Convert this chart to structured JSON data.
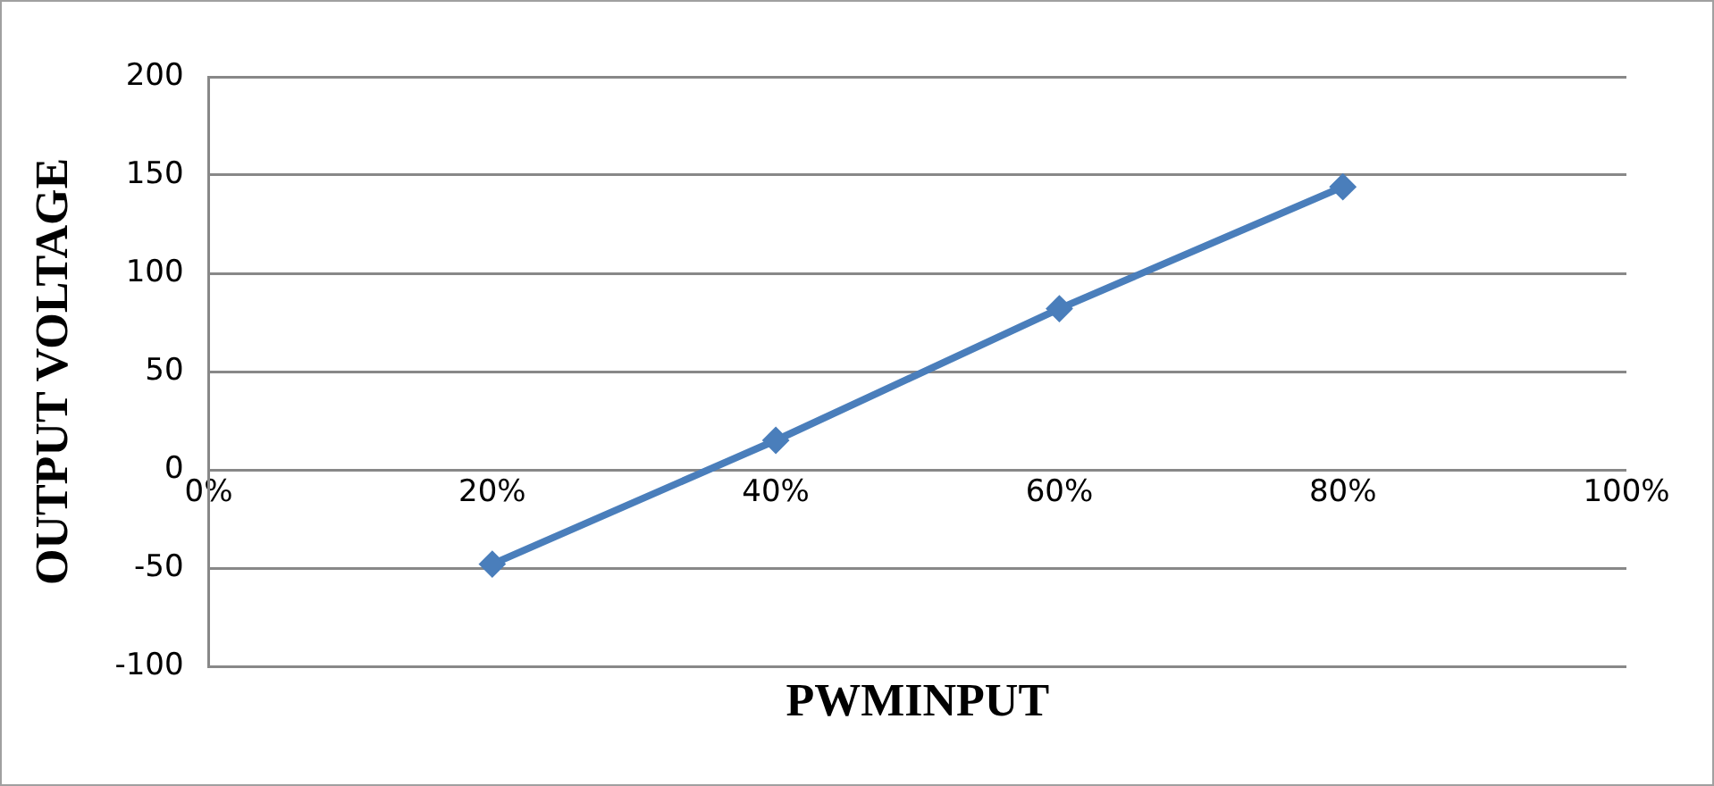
{
  "chart_data": {
    "type": "line",
    "xlabel": "PWMINPUT",
    "ylabel": "OUTPUT VOLTAGE",
    "x": [
      20,
      40,
      60,
      80
    ],
    "series": [
      {
        "color": "#4a7ebb",
        "values": [
          -48,
          15,
          82,
          144
        ]
      }
    ],
    "xlim": [
      0,
      100
    ],
    "xticks": [
      {
        "value": 0,
        "label": "0%"
      },
      {
        "value": 20,
        "label": "20%"
      },
      {
        "value": 40,
        "label": "40%"
      },
      {
        "value": 60,
        "label": "60%"
      },
      {
        "value": 80,
        "label": "80%"
      },
      {
        "value": 100,
        "label": "100%"
      }
    ],
    "ylim": [
      -100,
      200
    ],
    "yticks": [
      -100,
      -50,
      0,
      50,
      100,
      150,
      200
    ],
    "grid": "y",
    "legend": false,
    "marker": "diamond",
    "line_style": "solid"
  }
}
